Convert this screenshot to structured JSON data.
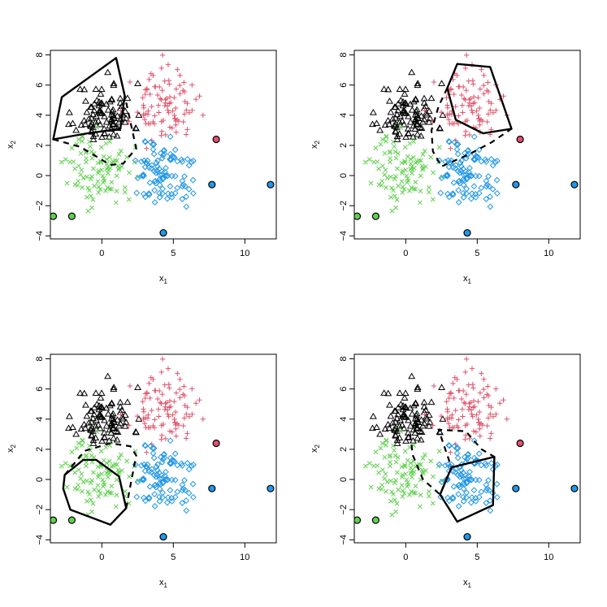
{
  "colors": {
    "black": "#000000",
    "red": "#DF536B",
    "green": "#61D04F",
    "blue": "#2297E6"
  },
  "chart_data": {
    "type": "scatter",
    "layout": "2x2 grid of identical scatter panels",
    "xlabel": "x",
    "xlabel_sub": "1",
    "ylabel": "x",
    "ylabel_sub": "2",
    "xlim": [
      -3.6,
      12.2
    ],
    "ylim": [
      -4.2,
      8.3
    ],
    "xticks": [
      "0",
      "5",
      "10"
    ],
    "yticks": [
      "−4",
      "−2",
      "0",
      "2",
      "4",
      "6",
      "8"
    ],
    "grid": false,
    "legend": "none",
    "clusters": [
      {
        "id": "black",
        "marker": "triangle",
        "color": "black",
        "center": [
          0.2,
          4.1
        ],
        "spread": [
          1.0,
          1.0
        ],
        "n": 95,
        "seed": 11
      },
      {
        "id": "red",
        "marker": "plus",
        "color": "red",
        "center": [
          4.3,
          4.6
        ],
        "spread": [
          1.1,
          1.1
        ],
        "n": 95,
        "seed": 23
      },
      {
        "id": "green",
        "marker": "x",
        "color": "green",
        "center": [
          -0.1,
          0.4
        ],
        "spread": [
          1.15,
          1.15
        ],
        "n": 95,
        "seed": 37
      },
      {
        "id": "blue",
        "marker": "diamond",
        "color": "blue",
        "center": [
          4.2,
          0.2
        ],
        "spread": [
          1.1,
          1.1
        ],
        "n": 100,
        "seed": 51
      }
    ],
    "outliers": [
      {
        "x": -3.4,
        "y": -2.7,
        "color": "green"
      },
      {
        "x": -2.1,
        "y": -2.7,
        "color": "green"
      },
      {
        "x": 4.3,
        "y": -3.8,
        "color": "blue"
      },
      {
        "x": 7.7,
        "y": -0.6,
        "color": "blue"
      },
      {
        "x": 11.8,
        "y": -0.6,
        "color": "blue"
      },
      {
        "x": 8.0,
        "y": 2.4,
        "color": "red"
      }
    ],
    "panels": [
      {
        "name": "top-left",
        "highlight": "black",
        "solid_hull": [
          [
            -3.4,
            2.4
          ],
          [
            -2.8,
            5.2
          ],
          [
            1.0,
            7.8
          ],
          [
            1.6,
            5.3
          ],
          [
            1.3,
            3.1
          ],
          [
            -1.0,
            2.8
          ]
        ],
        "dashed_hull": [
          [
            -3.4,
            2.4
          ],
          [
            -1.5,
            1.9
          ],
          [
            0.6,
            0.7
          ],
          [
            1.5,
            0.8
          ],
          [
            2.4,
            1.8
          ],
          [
            1.6,
            5.3
          ],
          [
            1.0,
            7.8
          ]
        ]
      },
      {
        "name": "top-right",
        "highlight": "red",
        "solid_hull": [
          [
            2.9,
            5.8
          ],
          [
            3.6,
            7.4
          ],
          [
            5.9,
            7.2
          ],
          [
            7.4,
            3.1
          ],
          [
            5.4,
            2.8
          ],
          [
            3.5,
            3.7
          ]
        ],
        "dashed_hull": [
          [
            2.9,
            5.8
          ],
          [
            2.3,
            4.6
          ],
          [
            1.8,
            3.0
          ],
          [
            1.9,
            1.6
          ],
          [
            2.5,
            0.6
          ],
          [
            4.4,
            1.4
          ],
          [
            6.0,
            2.2
          ],
          [
            7.4,
            3.1
          ]
        ]
      },
      {
        "name": "bottom-left",
        "highlight": "green",
        "solid_hull": [
          [
            -2.7,
            -0.6
          ],
          [
            -2.6,
            0.3
          ],
          [
            -1.3,
            1.3
          ],
          [
            -0.4,
            1.3
          ],
          [
            1.2,
            0.2
          ],
          [
            1.7,
            -1.9
          ],
          [
            0.6,
            -3.0
          ],
          [
            -2.2,
            -2.0
          ]
        ],
        "dashed_hull": [
          [
            -2.6,
            0.3
          ],
          [
            -1.2,
            1.9
          ],
          [
            0.6,
            2.4
          ],
          [
            2.0,
            2.2
          ],
          [
            2.4,
            1.6
          ],
          [
            2.0,
            -0.4
          ],
          [
            1.7,
            -1.9
          ]
        ]
      },
      {
        "name": "bottom-right",
        "highlight": "blue",
        "solid_hull": [
          [
            2.4,
            -1.0
          ],
          [
            3.2,
            0.8
          ],
          [
            6.2,
            1.5
          ],
          [
            6.1,
            -1.7
          ],
          [
            3.6,
            -2.8
          ]
        ],
        "dashed_hull": [
          [
            0.3,
            3.0
          ],
          [
            0.5,
            1.6
          ],
          [
            1.2,
            0.0
          ],
          [
            2.4,
            -1.0
          ],
          [
            3.2,
            0.8
          ],
          [
            2.3,
            3.3
          ],
          [
            4.2,
            3.2
          ],
          [
            5.3,
            2.0
          ],
          [
            6.2,
            1.5
          ]
        ]
      }
    ]
  }
}
